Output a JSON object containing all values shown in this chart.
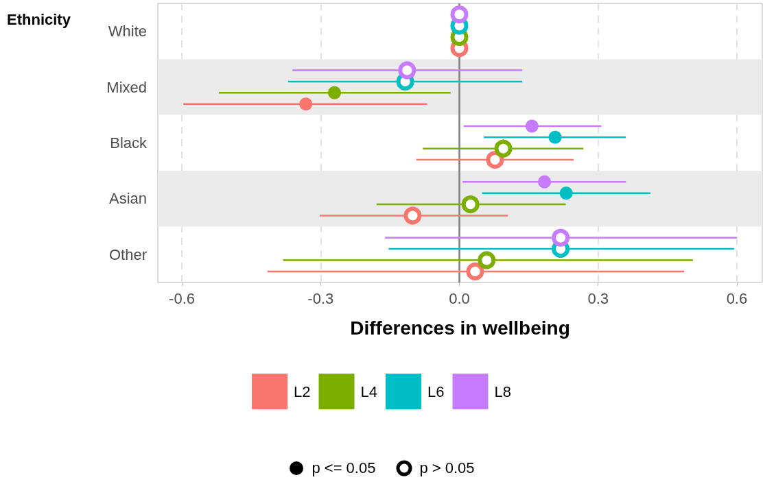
{
  "chart_data": {
    "type": "scatter",
    "orientation": "horizontal",
    "ylabel": "Ethnicity",
    "xlabel": "Differences in wellbeing",
    "categories": [
      "White",
      "Mixed",
      "Black",
      "Asian",
      "Other"
    ],
    "xlim": [
      -0.652,
      0.655
    ],
    "xticks": [
      -0.6,
      -0.3,
      {
        "value": 0,
        "label": "0.0"
      },
      0.3,
      0.6
    ],
    "grid": "x",
    "legend": "bottom",
    "series": [
      {
        "name": "L2",
        "color": "#f8766d",
        "marker": "circle",
        "values": [
          null,
          -0.332,
          null,
          null,
          null
        ],
        "errors": [
          null,
          [
            -0.597,
            -0.07
          ],
          null,
          null,
          null
        ]
      },
      {
        "color": "#f8766d",
        "values": [
          0,
          null,
          0.077,
          -0.101,
          0.034
        ],
        "errors": [
          null,
          null,
          [
            -0.093,
            0.247
          ],
          [
            -0.302,
            0.105
          ],
          [
            -0.415,
            0.486
          ]
        ]
      },
      {
        "name": "L4",
        "color": "#7cae00",
        "marker": "circle",
        "values": [
          null,
          -0.27,
          null,
          null,
          null
        ],
        "errors": [
          null,
          [
            -0.52,
            -0.019
          ],
          null,
          null,
          null
        ]
      },
      {
        "color": "#7cae00",
        "values": [
          0,
          null,
          0.095,
          0.024,
          0.059
        ],
        "errors": [
          null,
          null,
          [
            -0.079,
            0.268
          ],
          [
            -0.179,
            0.23
          ],
          [
            -0.381,
            0.505
          ]
        ]
      },
      {
        "name": "L6",
        "color": "#00bfc4",
        "marker": "circle",
        "values": [
          null,
          null,
          0.207,
          0.231,
          null
        ],
        "errors": [
          null,
          null,
          [
            0.053,
            0.36
          ],
          [
            0.049,
            0.413
          ],
          null
        ]
      },
      {
        "color": "#00bfc4",
        "values": [
          0,
          -0.117,
          null,
          null,
          0.219
        ],
        "errors": [
          null,
          [
            -0.37,
            0.136
          ],
          null,
          null,
          [
            -0.153,
            0.594
          ]
        ]
      },
      {
        "name": "L8",
        "color": "#c77cff",
        "marker": "circle",
        "values": [
          null,
          null,
          0.157,
          0.184,
          null
        ],
        "errors": [
          null,
          null,
          [
            0.009,
            0.307
          ],
          [
            0.007,
            0.36
          ],
          null
        ]
      },
      {
        "color": "#c77cff",
        "values": [
          0,
          -0.113,
          null,
          null,
          0.219
        ],
        "errors": [
          null,
          [
            -0.361,
            0.136
          ],
          null,
          null,
          [
            -0.161,
            0.6
          ]
        ]
      }
    ],
    "bands": [
      {
        "axis": "y",
        "from": "Mixed",
        "to": "Mixed",
        "color": "#ebebeb"
      },
      {
        "axis": "y",
        "from": "Asian",
        "to": "Asian",
        "color": "#ebebeb"
      }
    ],
    "ref_lines": [
      {
        "axis": "x",
        "value": 0,
        "color": "#7f7f7f"
      }
    ],
    "annotations": [
      "p <= 0.05",
      "p > 0.05"
    ]
  }
}
